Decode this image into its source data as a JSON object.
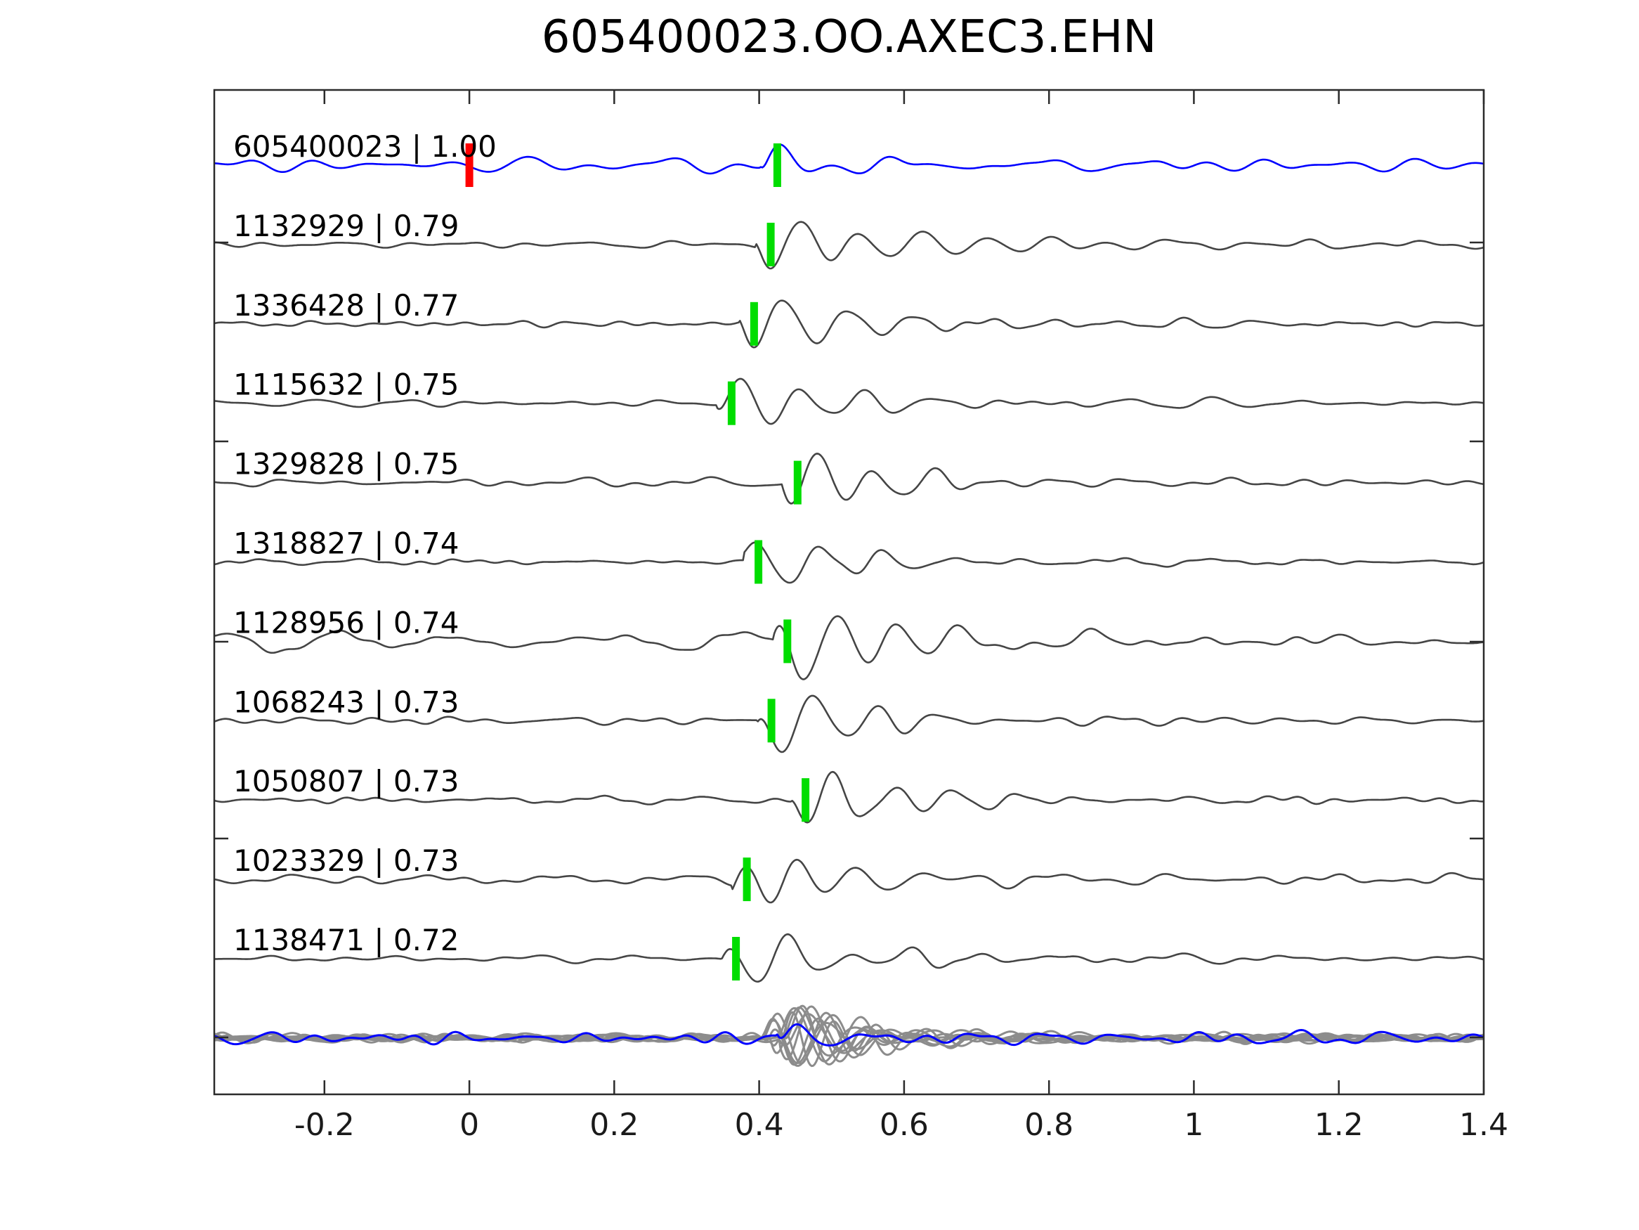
{
  "figure": {
    "background": "#ffffff"
  },
  "chart_data": {
    "type": "line",
    "title": "605400023.OO.AXEC3.EHN",
    "xlabel": "",
    "ylabel": "",
    "legend": null,
    "grid": false,
    "x_axis": {
      "min": -0.352,
      "max": 1.4,
      "ticks": [
        -0.2,
        0,
        0.2,
        0.4,
        0.6,
        0.8,
        1,
        1.2,
        1.4
      ],
      "tick_labels": [
        "-0.2",
        "0",
        "0.2",
        "0.4",
        "0.6",
        "0.8",
        "1",
        "1.2",
        "1.4"
      ]
    },
    "colors": {
      "template_trace": "#0000ff",
      "detection_trace": "#454545",
      "overlay_gray": "#8c8c8c",
      "pick_green": "#00dd00",
      "pick_red": "#ff0000",
      "axis": "#2b2b2b",
      "text": "#000000"
    },
    "traces": [
      {
        "id_text": "605400023",
        "cc_text": "1.00",
        "label": "605400023 | 1.00",
        "color": "#0000ff",
        "picks": [
          {
            "t": 0.0,
            "color": "#ff0000"
          },
          {
            "t": 0.425,
            "color": "#00dd00"
          }
        ],
        "synth": {
          "seed": 101,
          "noise_amp": 12,
          "noise_fmin": 5,
          "noise_fmax": 28,
          "slow_amp": 0,
          "packet": {
            "onset": 0.402,
            "amp": 40,
            "f": 12.5,
            "rise": 0.01,
            "decay": 0.05
          },
          "coda_amp": 6
        }
      },
      {
        "id_text": "1132929",
        "cc_text": "0.79",
        "label": "1132929 | 0.79",
        "color": "#454545",
        "picks": [
          {
            "t": 0.416,
            "color": "#00dd00"
          }
        ],
        "synth": {
          "seed": 202,
          "noise_amp": 5.5,
          "noise_fmin": 5,
          "noise_fmax": 26,
          "slow_amp": 0,
          "packet": {
            "onset": 0.396,
            "amp": 62,
            "f": 11.5,
            "rise": 0.018,
            "decay": 0.13
          },
          "coda_amp": 13
        }
      },
      {
        "id_text": "1336428",
        "cc_text": "0.77",
        "label": "1336428 | 0.77",
        "color": "#454545",
        "picks": [
          {
            "t": 0.393,
            "color": "#00dd00"
          }
        ],
        "synth": {
          "seed": 303,
          "noise_amp": 5.5,
          "noise_fmin": 5,
          "noise_fmax": 26,
          "slow_amp": 0,
          "packet": {
            "onset": 0.373,
            "amp": 58,
            "f": 11,
            "rise": 0.02,
            "decay": 0.12
          },
          "coda_amp": 12
        }
      },
      {
        "id_text": "1115632",
        "cc_text": "0.75",
        "label": "1115632 | 0.75",
        "color": "#454545",
        "picks": [
          {
            "t": 0.362,
            "color": "#00dd00"
          }
        ],
        "synth": {
          "seed": 404,
          "noise_amp": 5,
          "noise_fmin": 5,
          "noise_fmax": 26,
          "slow_amp": 0,
          "packet": {
            "onset": 0.342,
            "amp": 60,
            "f": 11.5,
            "rise": 0.025,
            "decay": 0.12
          },
          "coda_amp": 12
        }
      },
      {
        "id_text": "1329828",
        "cc_text": "0.75",
        "label": "1329828 | 0.75",
        "color": "#454545",
        "picks": [
          {
            "t": 0.453,
            "color": "#00dd00"
          }
        ],
        "synth": {
          "seed": 505,
          "noise_amp": 6,
          "noise_fmin": 5,
          "noise_fmax": 26,
          "slow_amp": 0,
          "packet": {
            "onset": 0.433,
            "amp": 62,
            "f": 12,
            "rise": 0.02,
            "decay": 0.13
          },
          "coda_amp": 13
        }
      },
      {
        "id_text": "1318827",
        "cc_text": "0.74",
        "label": "1318827 | 0.74",
        "color": "#454545",
        "picks": [
          {
            "t": 0.399,
            "color": "#00dd00"
          }
        ],
        "synth": {
          "seed": 606,
          "noise_amp": 5,
          "noise_fmin": 5,
          "noise_fmax": 26,
          "slow_amp": 0,
          "packet": {
            "onset": 0.379,
            "amp": 55,
            "f": 11,
            "rise": 0.02,
            "decay": 0.12
          },
          "coda_amp": 12
        }
      },
      {
        "id_text": "1128956",
        "cc_text": "0.74",
        "label": "1128956 | 0.74",
        "color": "#454545",
        "picks": [
          {
            "t": 0.439,
            "color": "#00dd00"
          }
        ],
        "synth": {
          "seed": 707,
          "noise_amp": 6,
          "noise_fmin": 5,
          "noise_fmax": 26,
          "slow_amp": 22,
          "packet": {
            "onset": 0.419,
            "amp": 62,
            "f": 11.5,
            "rise": 0.02,
            "decay": 0.15
          },
          "coda_amp": 15
        }
      },
      {
        "id_text": "1068243",
        "cc_text": "0.73",
        "label": "1068243 | 0.73",
        "color": "#454545",
        "picks": [
          {
            "t": 0.417,
            "color": "#00dd00"
          }
        ],
        "synth": {
          "seed": 808,
          "noise_amp": 6,
          "noise_fmin": 5,
          "noise_fmax": 26,
          "slow_amp": 0,
          "packet": {
            "onset": 0.397,
            "amp": 62,
            "f": 11.5,
            "rise": 0.02,
            "decay": 0.13
          },
          "coda_amp": 13
        }
      },
      {
        "id_text": "1050807",
        "cc_text": "0.73",
        "label": "1050807 | 0.73",
        "color": "#454545",
        "picks": [
          {
            "t": 0.464,
            "color": "#00dd00"
          }
        ],
        "synth": {
          "seed": 909,
          "noise_amp": 5.5,
          "noise_fmin": 5,
          "noise_fmax": 26,
          "slow_amp": 0,
          "packet": {
            "onset": 0.444,
            "amp": 60,
            "f": 12,
            "rise": 0.02,
            "decay": 0.12
          },
          "coda_amp": 12
        }
      },
      {
        "id_text": "1023329",
        "cc_text": "0.73",
        "label": "1023329 | 0.73",
        "color": "#454545",
        "picks": [
          {
            "t": 0.383,
            "color": "#00dd00"
          }
        ],
        "synth": {
          "seed": 1010,
          "noise_amp": 7,
          "noise_fmin": 5,
          "noise_fmax": 28,
          "slow_amp": 0,
          "packet": {
            "onset": 0.363,
            "amp": 58,
            "f": 12,
            "rise": 0.02,
            "decay": 0.12
          },
          "coda_amp": 13
        }
      },
      {
        "id_text": "1138471",
        "cc_text": "0.72",
        "label": "1138471 | 0.72",
        "color": "#454545",
        "picks": [
          {
            "t": 0.368,
            "color": "#00dd00"
          }
        ],
        "synth": {
          "seed": 1111,
          "noise_amp": 5.5,
          "noise_fmin": 5,
          "noise_fmax": 26,
          "slow_amp": 0,
          "packet": {
            "onset": 0.348,
            "amp": 55,
            "f": 11.5,
            "rise": 0.02,
            "decay": 0.12
          },
          "coda_amp": 12
        }
      }
    ],
    "overlay": {
      "gray_count": 10,
      "gray_color": "#8c8c8c",
      "blue_color": "#0000ff",
      "seed": 2020,
      "gray_synth": {
        "noise_amp": 6,
        "noise_fmin": 6,
        "noise_fmax": 26,
        "packet_amp_min": 45,
        "packet_amp_max": 70,
        "f_min": 11,
        "f_max": 16,
        "onset_min": 0.4,
        "onset_max": 0.44,
        "rise": 0.015,
        "decay_min": 0.08,
        "decay_max": 0.13,
        "coda_amp": 12
      },
      "blue_synth": {
        "seed": 3030,
        "noise_amp": 12,
        "noise_fmin": 5,
        "noise_fmax": 28,
        "slow_amp": 0,
        "packet": {
          "onset": 0.425,
          "amp": 30,
          "f": 12,
          "rise": 0.01,
          "decay": 0.06
        },
        "coda_amp": 8
      }
    }
  }
}
